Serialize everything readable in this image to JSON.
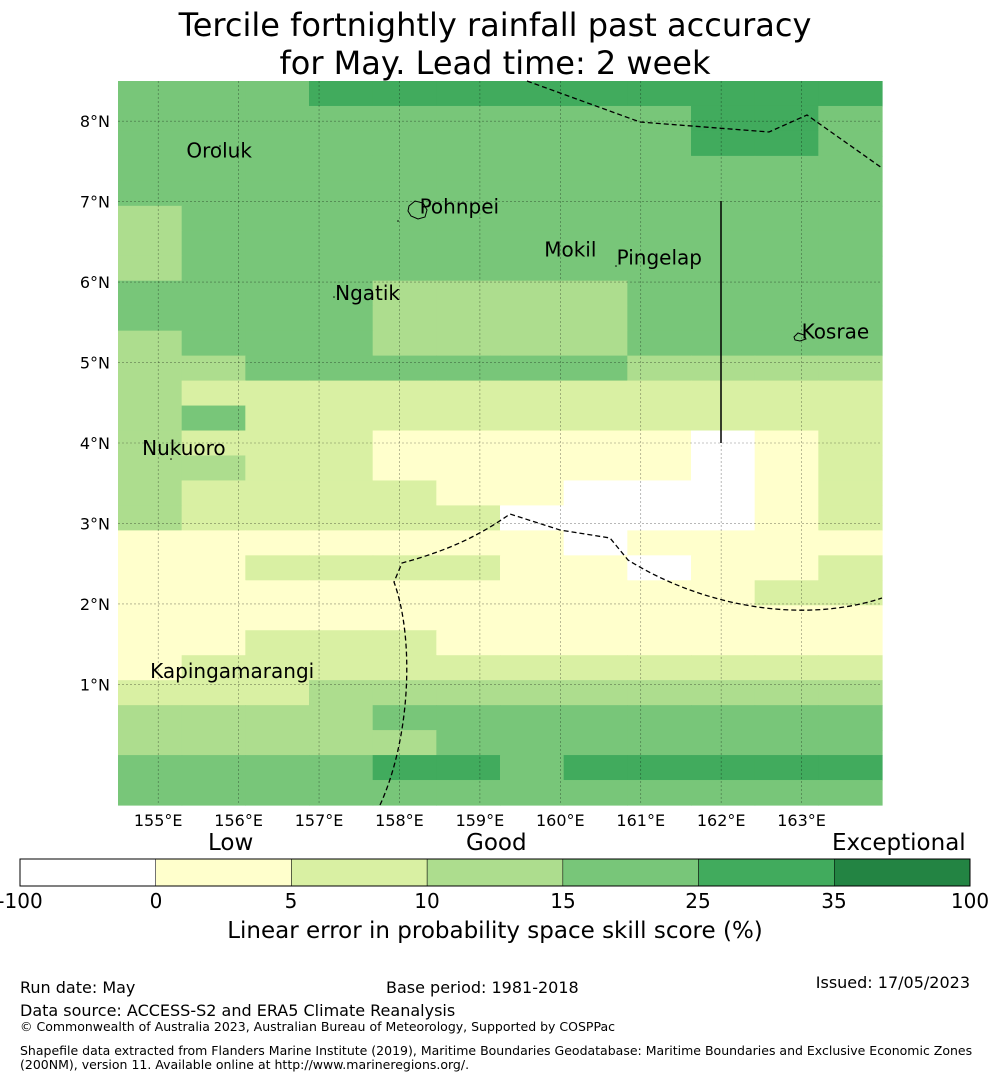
{
  "title_line1": "Tercile fortnightly rainfall past accuracy",
  "title_line2": "for May. Lead time: 2 week",
  "map": {
    "lon_range": [
      154.5,
      164.0
    ],
    "lat_range": [
      -0.5,
      8.5
    ],
    "lon_ticks": [
      {
        "value": 155,
        "label": "155°E"
      },
      {
        "value": 156,
        "label": "156°E"
      },
      {
        "value": 157,
        "label": "157°E"
      },
      {
        "value": 158,
        "label": "158°E"
      },
      {
        "value": 159,
        "label": "159°E"
      },
      {
        "value": 160,
        "label": "160°E"
      },
      {
        "value": 161,
        "label": "161°E"
      },
      {
        "value": 162,
        "label": "162°E"
      },
      {
        "value": 163,
        "label": "163°E"
      }
    ],
    "lat_ticks": [
      {
        "value": 1,
        "label": "1°N"
      },
      {
        "value": 2,
        "label": "2°N"
      },
      {
        "value": 3,
        "label": "3°N"
      },
      {
        "value": 4,
        "label": "4°N"
      },
      {
        "value": 5,
        "label": "5°N"
      },
      {
        "value": 6,
        "label": "6°N"
      },
      {
        "value": 7,
        "label": "7°N"
      },
      {
        "value": 8,
        "label": "8°N"
      }
    ],
    "grid_lines": true,
    "grid_cells_lon_step": 0.833,
    "grid_cells_lat_step": 0.5556,
    "category_grid_rows_north_to_south": [
      "444555555555",
      "444444444554",
      "444444444554",
      "444444444444",
      "444444444444",
      "344444444444",
      "344444444444",
      "344444444444",
      "444433334444",
      "444433334444",
      "344433334444",
      "334444443333",
      "322222222222",
      "342222222222",
      "322211111012",
      "332211111012",
      "322221100012",
      "322222000012",
      "111111101111",
      "112222110112",
      "111111111122",
      "111111111111",
      "112221111111",
      "122222222222",
      "222333333333",
      "333344444444",
      "333334444444",
      "444455455555",
      "444444444444"
    ],
    "places": [
      {
        "name": "Oroluk",
        "lon": 155.35,
        "lat": 7.55
      },
      {
        "name": "Pohnpei",
        "lon": 158.25,
        "lat": 6.85
      },
      {
        "name": "Mokil",
        "lon": 159.8,
        "lat": 6.32
      },
      {
        "name": "Pingelap",
        "lon": 160.7,
        "lat": 6.22
      },
      {
        "name": "Ngatik",
        "lon": 157.2,
        "lat": 5.78
      },
      {
        "name": "Kosrae",
        "lon": 163.0,
        "lat": 5.3
      },
      {
        "name": "Nukuoro",
        "lon": 154.8,
        "lat": 3.85
      },
      {
        "name": "Kapingamarangi",
        "lon": 154.9,
        "lat": 1.08
      }
    ]
  },
  "colorbar": {
    "categories": [
      {
        "name": "Low",
        "center_value": 2.5
      },
      {
        "name": "Good",
        "center_value": 12.5
      },
      {
        "name": "Exceptional",
        "center_value": 67.5
      }
    ],
    "bins": [
      {
        "from": -100,
        "to": 0,
        "color": "#ffffff"
      },
      {
        "from": 0,
        "to": 5,
        "color": "#ffffcc"
      },
      {
        "from": 5,
        "to": 10,
        "color": "#d9f0a3"
      },
      {
        "from": 10,
        "to": 15,
        "color": "#addd8e"
      },
      {
        "from": 15,
        "to": 25,
        "color": "#78c679"
      },
      {
        "from": 25,
        "to": 35,
        "color": "#41ab5d"
      },
      {
        "from": 35,
        "to": 100,
        "color": "#238443"
      }
    ],
    "tick_labels": [
      "-100",
      "0",
      "5",
      "10",
      "15",
      "25",
      "35",
      "100"
    ],
    "label": "Linear error in probability space skill score (%)"
  },
  "footer": {
    "run_date": "Run date: May",
    "base_period": "Base period: 1981-2018",
    "issued": "Issued: 17/05/2023",
    "data_source": "Data source: ACCESS-S2 and ERA5 Climate Reanalysis",
    "copyright": "© Commonwealth of Australia 2023, Australian Bureau of Meteorology, Supported by COSPPac",
    "shapefile_line1": "Shapefile data extracted from Flanders Marine Institute (2019), Maritime Boundaries Geodatabase: Maritime Boundaries and Exclusive Economic Zones",
    "shapefile_line2": "(200NM), version 11. Available online at http://www.marineregions.org/."
  }
}
